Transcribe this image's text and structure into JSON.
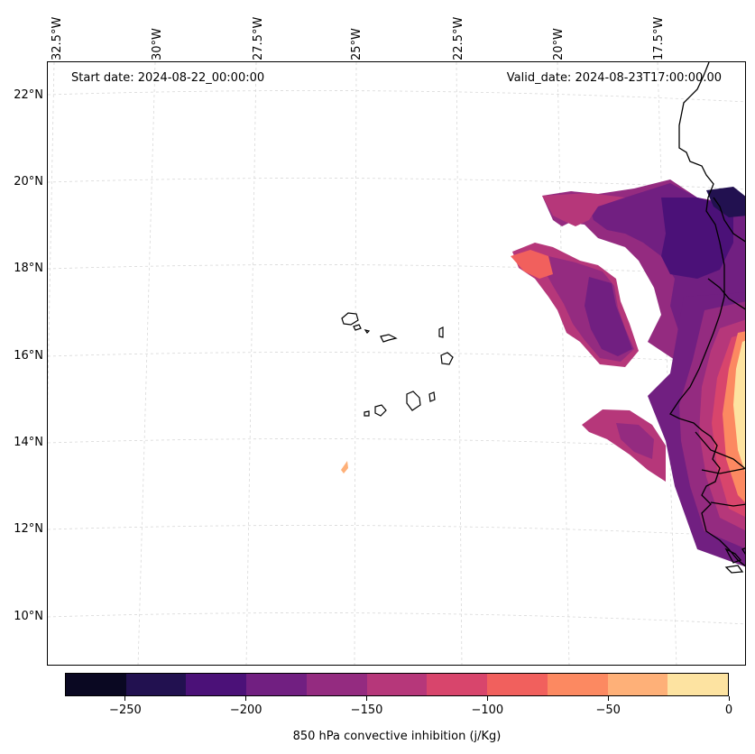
{
  "map": {
    "start_label": "Start date: 2024-08-22_00:00:00",
    "valid_label": "Valid_date: 2024-08-23T17:00:00.00",
    "lon_ticks": [
      "32.5°W",
      "30°W",
      "27.5°W",
      "25°W",
      "22.5°W",
      "20°W",
      "17.5°W"
    ],
    "lat_ticks": [
      "22°N",
      "20°N",
      "18°N",
      "16°N",
      "14°N",
      "12°N",
      "10°N"
    ],
    "lon_range_deg": [
      -32.8,
      -15.1
    ],
    "lat_range_deg": [
      8.9,
      22.8
    ],
    "features": [
      "cape-verde-islands",
      "west-africa-coastline",
      "convective-inhibition-contours"
    ],
    "gridlines": true
  },
  "colorbar": {
    "label": "850 hPa convective inhibition (j/Kg)",
    "tick_labels": [
      "−250",
      "−200",
      "−150",
      "−100",
      "−50",
      "0"
    ],
    "tick_values": [
      -250,
      -200,
      -150,
      -100,
      -50,
      0
    ],
    "range": [
      -275,
      0
    ],
    "colors": [
      "#0a0822",
      "#221150",
      "#4b1178",
      "#711f81",
      "#942b80",
      "#b6377a",
      "#d8456c",
      "#f1605d",
      "#fc8961",
      "#feb078",
      "#fde3a1"
    ]
  }
}
